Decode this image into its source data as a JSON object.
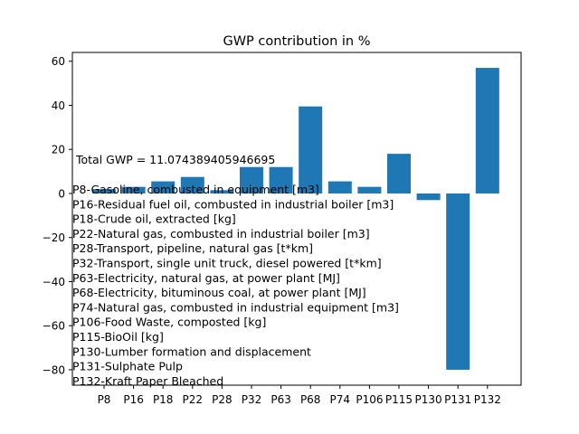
{
  "chart_data": {
    "type": "bar",
    "title": "GWP contribution in %",
    "xlabel": "",
    "ylabel": "",
    "categories": [
      "P8",
      "P16",
      "P18",
      "P22",
      "P28",
      "P32",
      "P63",
      "P68",
      "P74",
      "P106",
      "P115",
      "P130",
      "P131",
      "P132"
    ],
    "values": [
      2,
      3,
      5.5,
      7.5,
      1.5,
      12,
      12,
      39.5,
      5.5,
      3,
      18,
      -3,
      -80,
      57
    ],
    "ylim": [
      -87,
      64
    ],
    "yticks": [
      -80,
      -60,
      -40,
      -20,
      0,
      20,
      40,
      60
    ],
    "ytick_labels": [
      "−80",
      "−60",
      "−40",
      "−20",
      "0",
      "20",
      "40",
      "60"
    ],
    "bar_color": "#1f77b4",
    "grid": false,
    "annotation": "Total GWP = 11.074389405946695",
    "legend_lines": [
      "P8-Gasoline, combusted in equipment [m3]",
      "P16-Residual fuel oil, combusted in industrial boiler [m3]",
      "P18-Crude oil, extracted [kg]",
      "P22-Natural gas, combusted in industrial boiler [m3]",
      "P28-Transport, pipeline, natural gas [t*km]",
      "P32-Transport, single unit truck, diesel powered [t*km]",
      "P63-Electricity, natural gas, at power plant [MJ]",
      "P68-Electricity, bituminous coal, at power plant [MJ]",
      "P74-Natural gas, combusted in industrial equipment [m3]",
      "P106-Food Waste, composted [kg]",
      "P115-BioOil [kg]",
      "P130-Lumber formation and displacement",
      "P131-Sulphate Pulp",
      "P132-Kraft Paper Bleached"
    ]
  }
}
